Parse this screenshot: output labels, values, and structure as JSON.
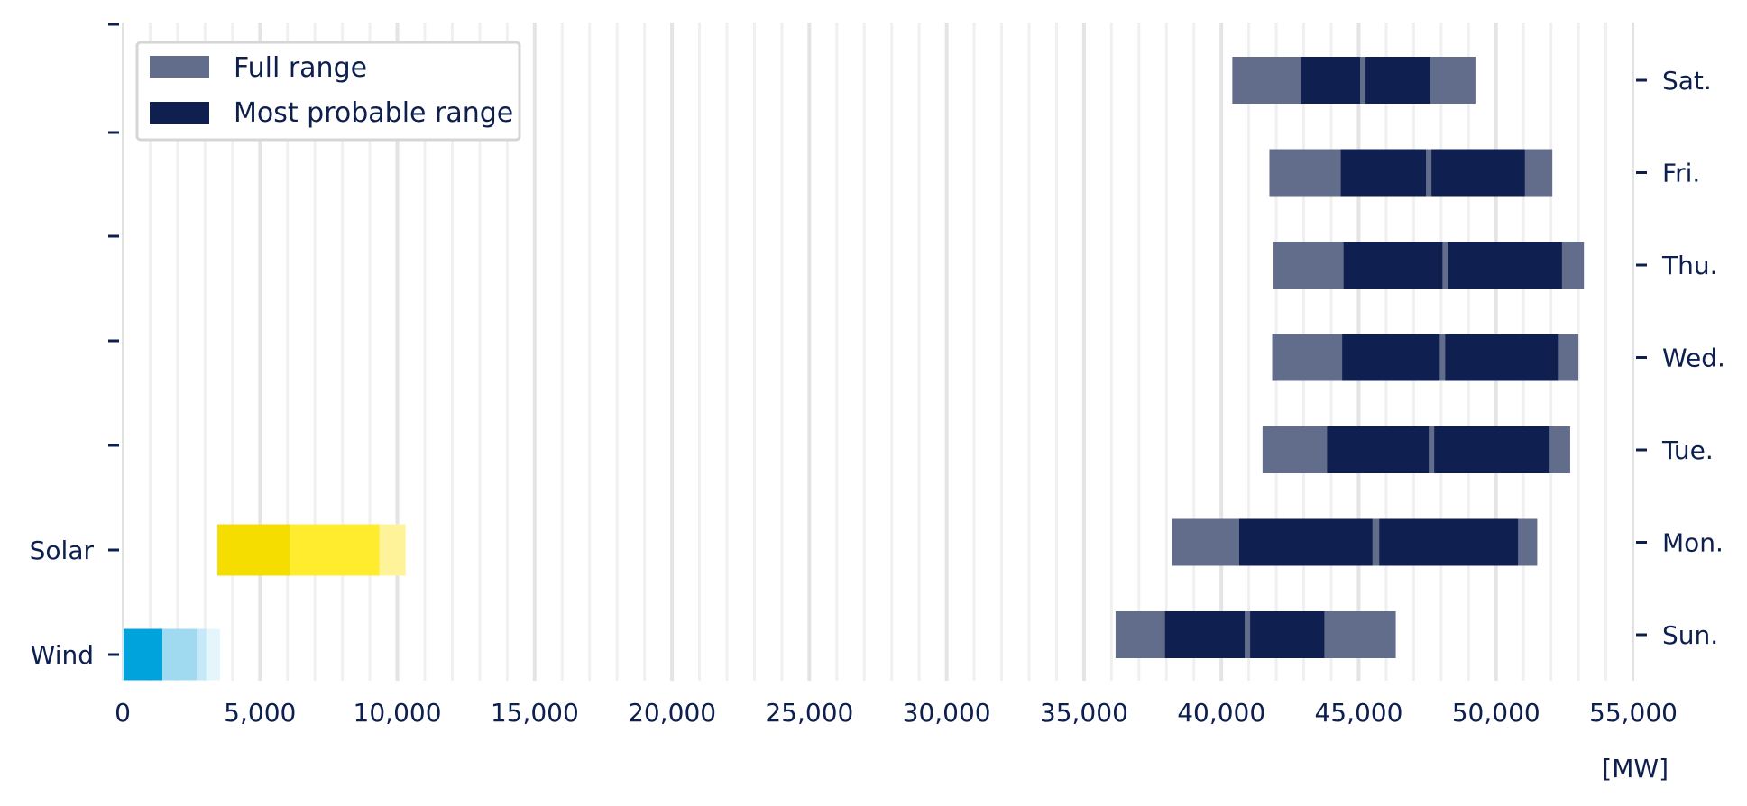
{
  "chart_data": {
    "type": "bar",
    "subtype": "horizontal-range",
    "unit_label": "[MW]",
    "xlim": [
      0,
      55000
    ],
    "x_ticks": [
      0,
      5000,
      10000,
      15000,
      20000,
      25000,
      30000,
      35000,
      40000,
      45000,
      50000,
      55000
    ],
    "x_tick_labels": [
      "0",
      "5,000",
      "10,000",
      "15,000",
      "20,000",
      "25,000",
      "30,000",
      "35,000",
      "40,000",
      "45,000",
      "50,000",
      "55,000"
    ],
    "grid": "vertical",
    "legend": {
      "placement": "top-left",
      "entries": [
        {
          "label": "Full range",
          "color": "#626d8c"
        },
        {
          "label": "Most probable range",
          "color": "#0f1f4f"
        }
      ]
    },
    "renewables": [
      {
        "label": "Wind",
        "segments": [
          {
            "from": 0,
            "to": 1450,
            "color": "#00a3dc"
          },
          {
            "from": 1450,
            "to": 2700,
            "color": "#9fdaf1"
          },
          {
            "from": 2700,
            "to": 3050,
            "color": "#c5e9f8"
          },
          {
            "from": 3050,
            "to": 3550,
            "color": "#e4f5fc"
          }
        ]
      },
      {
        "label": "Solar",
        "segments": [
          {
            "from": 3450,
            "to": 6100,
            "color": "#f5dd00"
          },
          {
            "from": 6100,
            "to": 9350,
            "color": "#ffec2e"
          },
          {
            "from": 9350,
            "to": 10300,
            "color": "#fff39a"
          }
        ]
      }
    ],
    "days": [
      {
        "label": "Sun.",
        "full": [
          36150,
          46350
        ],
        "probable_low": [
          37950,
          40850
        ],
        "probable_high": [
          41050,
          43750
        ]
      },
      {
        "label": "Mon.",
        "full": [
          38200,
          51500
        ],
        "probable_low": [
          40650,
          45500
        ],
        "probable_high": [
          45750,
          50800
        ]
      },
      {
        "label": "Tue.",
        "full": [
          41500,
          52700
        ],
        "probable_low": [
          43850,
          47550
        ],
        "probable_high": [
          47750,
          51950
        ]
      },
      {
        "label": "Wed.",
        "full": [
          41850,
          53000
        ],
        "probable_low": [
          44400,
          47950
        ],
        "probable_high": [
          48150,
          52250
        ]
      },
      {
        "label": "Thu.",
        "full": [
          41900,
          53200
        ],
        "probable_low": [
          44450,
          48050
        ],
        "probable_high": [
          48250,
          52400
        ]
      },
      {
        "label": "Fri.",
        "full": [
          41750,
          52050
        ],
        "probable_low": [
          44350,
          47450
        ],
        "probable_high": [
          47650,
          51050
        ]
      },
      {
        "label": "Sat.",
        "full": [
          40400,
          49250
        ],
        "probable_low": [
          42900,
          45050
        ],
        "probable_high": [
          45250,
          47600
        ]
      }
    ]
  }
}
